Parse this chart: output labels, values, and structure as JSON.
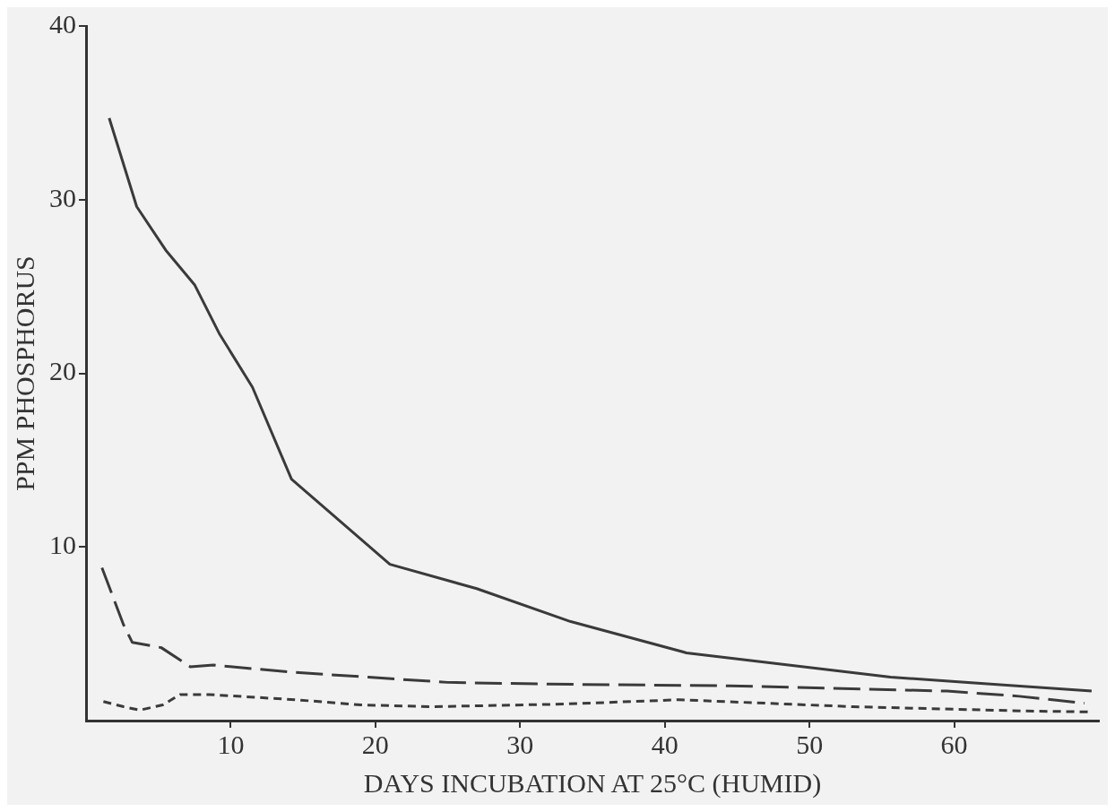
{
  "chart_data": {
    "type": "line",
    "xlabel": "DAYS INCUBATION AT 25°C (HUMID)",
    "ylabel": "PPM PHOSPHORUS",
    "xlim": [
      0,
      70
    ],
    "xticks": [
      10,
      20,
      30,
      40,
      50,
      60
    ],
    "ylim": [
      0,
      40
    ],
    "yticks": [
      10,
      20,
      30,
      40
    ],
    "grid": false,
    "legend": false,
    "marker": "none",
    "series": [
      {
        "color": "#3a3a3a",
        "line_style": "solid",
        "x": [
          1.6,
          3.5,
          5.5,
          7.5,
          9.2,
          11.5,
          14.2,
          21,
          27,
          33.5,
          41.5,
          55.6,
          69.5
        ],
        "values": [
          34.7,
          29.6,
          27.1,
          25.1,
          22.3,
          19.2,
          13.9,
          9.0,
          7.6,
          5.7,
          3.9,
          2.5,
          1.7
        ]
      },
      {
        "color": "#3a3a3a",
        "line_style": "dashed",
        "x": [
          1.1,
          2.6,
          3.2,
          5.2,
          7.2,
          8.8,
          14,
          19.5,
          25,
          32,
          44.5,
          59.5,
          64.5,
          69
        ],
        "values": [
          8.8,
          5.5,
          4.5,
          4.2,
          3.1,
          3.2,
          2.8,
          2.5,
          2.2,
          2.1,
          2.0,
          1.7,
          1.4,
          1.0
        ]
      },
      {
        "color": "#3a3a3a",
        "line_style": "dashed",
        "x": [
          1.2,
          2.6,
          3.7,
          5.3,
          6.5,
          8.5,
          14.5,
          19,
          24,
          33,
          41,
          53,
          65,
          69.5
        ],
        "values": [
          1.1,
          0.8,
          0.6,
          0.9,
          1.5,
          1.5,
          1.2,
          0.9,
          0.8,
          0.95,
          1.2,
          0.8,
          0.55,
          0.5
        ]
      }
    ]
  }
}
